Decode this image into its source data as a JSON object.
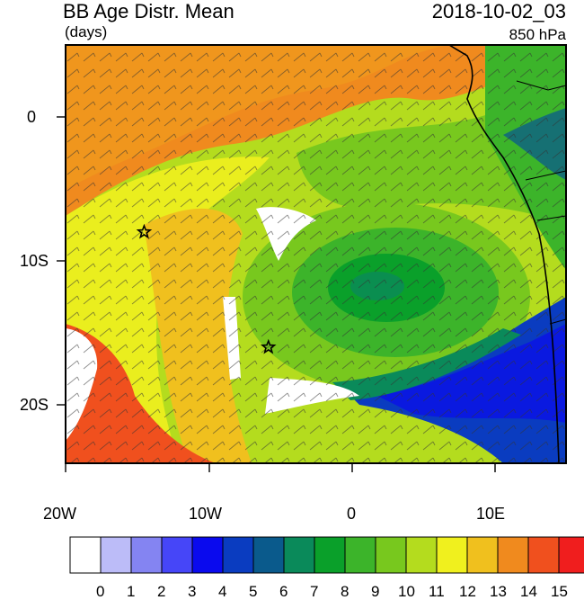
{
  "header": {
    "title": "BB Age Distr. Mean",
    "units": "(days)",
    "datetime": "2018-10-02_03",
    "level": "850 hPa"
  },
  "axes": {
    "lon_labels": [
      "20W",
      "10W",
      "0",
      "10E"
    ],
    "lat_labels": [
      "0",
      "10S",
      "20S"
    ]
  },
  "colorbar": {
    "labels": [
      "0",
      "1",
      "2",
      "3",
      "4",
      "5",
      "6",
      "7",
      "8",
      "9",
      "10",
      "11",
      "12",
      "13",
      "14",
      "15"
    ],
    "colors": [
      "#ffffff",
      "#bcbcf8",
      "#8484f2",
      "#4646f8",
      "#0a0aee",
      "#0a3cc0",
      "#0a5a8c",
      "#0a8a5a",
      "#0aa02a",
      "#3cb42a",
      "#78c81e",
      "#b4dc1e",
      "#f0f01e",
      "#f0c01e",
      "#f08a1e",
      "#f0501e",
      "#f01e1e"
    ]
  },
  "markers": [
    {
      "name": "station-star-north",
      "lon": -14.5,
      "lat": -8.0
    },
    {
      "name": "station-star-south",
      "lon": -5.8,
      "lat": -16.0
    }
  ]
}
